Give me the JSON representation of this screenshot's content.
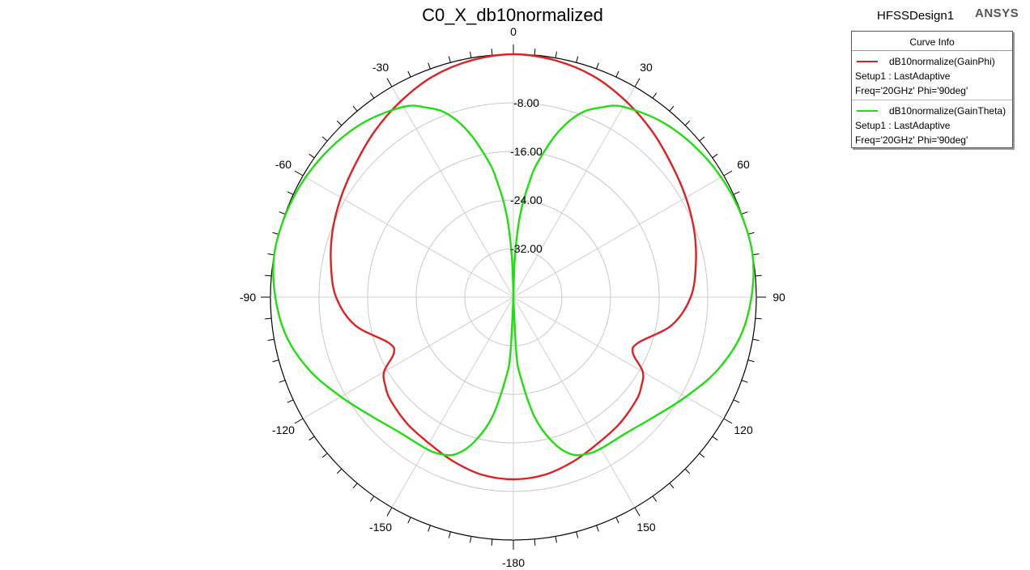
{
  "header": {
    "title": "C0_X_db10normalized",
    "design_name": "HFSSDesign1",
    "brand": "ANSYS"
  },
  "legend": {
    "header": "Curve Info",
    "entries": [
      {
        "name": "dB10normalize(GainPhi)",
        "line2": "Setup1 : LastAdaptive",
        "line3": "Freq='20GHz' Phi='90deg'",
        "color": "#dd2222"
      },
      {
        "name": "dB10normalize(GainTheta)",
        "line2": "Setup1 : LastAdaptive",
        "line3": "Freq='20GHz' Phi='90deg'",
        "color": "#22dd11"
      }
    ]
  },
  "chart_data": {
    "type": "polar",
    "title": "C0_X_db10normalized",
    "radial_range": [
      -40,
      0
    ],
    "radial_tick_labels": [
      "-8.00",
      "-16.00",
      "-24.00",
      "-32.00"
    ],
    "radial_tick_values": [
      -8,
      -16,
      -24,
      -32
    ],
    "angle_tick_labels": [
      "0",
      "30",
      "60",
      "90",
      "120",
      "150",
      "-180",
      "-150",
      "-120",
      "-90",
      "-60",
      "-30"
    ],
    "angle_tick_values": [
      0,
      30,
      60,
      90,
      120,
      150,
      180,
      -150,
      -120,
      -90,
      -60,
      -30
    ],
    "angle_unit": "deg",
    "grid": true,
    "legend_position": "top-right",
    "series": [
      {
        "name": "dB10normalize(GainPhi)",
        "color": "#dd2222",
        "theta": [
          0,
          10,
          20,
          30,
          40,
          50,
          60,
          70,
          80,
          90,
          100,
          110,
          115,
          120,
          125,
          130,
          140,
          150,
          160,
          170,
          180
        ],
        "values": [
          0,
          -0.4,
          -1.3,
          -2.8,
          -4.4,
          -6.0,
          -7.2,
          -8.3,
          -9.5,
          -10.8,
          -13.5,
          -18.1,
          -18.3,
          -15.4,
          -14.3,
          -13.6,
          -12.8,
          -12.2,
          -11.2,
          -10.3,
          -10.0
        ]
      },
      {
        "name": "dB10normalize(GainTheta)",
        "color": "#22dd11",
        "theta": [
          0.5,
          2,
          4,
          6,
          8,
          10,
          15,
          20,
          25,
          30,
          40,
          50,
          60,
          70,
          80,
          90,
          100,
          110,
          120,
          130,
          140,
          150,
          155,
          160,
          165,
          170,
          175,
          177,
          179.5
        ],
        "values": [
          -40,
          -34,
          -28,
          -24,
          -20.8,
          -17.7,
          -12,
          -7.8,
          -5.5,
          -3.8,
          -2.2,
          -1.2,
          -0.5,
          -0.1,
          0,
          -0.8,
          -2.1,
          -4.4,
          -7.2,
          -9.5,
          -10.9,
          -11.2,
          -11.5,
          -12.5,
          -15.4,
          -20,
          -27,
          -31,
          -40
        ]
      }
    ]
  }
}
